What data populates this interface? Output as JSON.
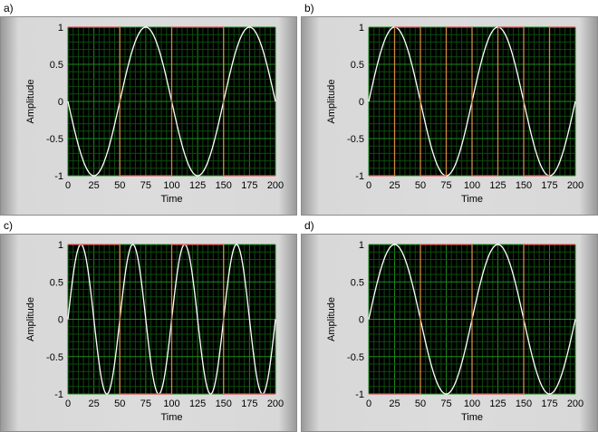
{
  "chart_data": [
    {
      "panel_label": "a)",
      "type": "line",
      "xlabel": "Time",
      "ylabel": "Amplitude",
      "xlim": [
        0,
        200
      ],
      "ylim": [
        -1,
        1
      ],
      "xticks": [
        "0",
        "25",
        "50",
        "75",
        "100",
        "125",
        "150",
        "175",
        "200"
      ],
      "yticks": [
        "1",
        "0.5",
        "0",
        "-0.5",
        "-1"
      ],
      "grid": true,
      "series": [
        {
          "kind": "sine",
          "period": 100,
          "amplitude": 1,
          "phase_sign": -1,
          "color": "#ffffff"
        },
        {
          "kind": "square",
          "start_level": 1,
          "edges": [
            50,
            100,
            150
          ],
          "color": "#e05050"
        }
      ]
    },
    {
      "panel_label": "b)",
      "type": "line",
      "xlabel": "Time",
      "ylabel": "Amplitude",
      "xlim": [
        0,
        200
      ],
      "ylim": [
        -1,
        1
      ],
      "xticks": [
        "0",
        "25",
        "50",
        "75",
        "100",
        "125",
        "150",
        "175",
        "200"
      ],
      "yticks": [
        "1",
        "0.5",
        "0",
        "-0.5",
        "-1"
      ],
      "grid": true,
      "series": [
        {
          "kind": "sine",
          "period": 100,
          "amplitude": 1,
          "phase_sign": 1,
          "color": "#ffffff"
        },
        {
          "kind": "square",
          "start_level": -1,
          "edges": [
            25,
            50,
            75,
            100,
            125,
            150,
            175
          ],
          "color": "#e05050"
        }
      ]
    },
    {
      "panel_label": "c)",
      "type": "line",
      "xlabel": "Time",
      "ylabel": "Amplitude",
      "xlim": [
        0,
        200
      ],
      "ylim": [
        -1,
        1
      ],
      "xticks": [
        "0",
        "25",
        "50",
        "75",
        "100",
        "125",
        "150",
        "175",
        "200"
      ],
      "yticks": [
        "1",
        "0.5",
        "0",
        "-0.5",
        "-1"
      ],
      "grid": true,
      "series": [
        {
          "kind": "sine",
          "period": 50,
          "amplitude": 1,
          "phase_sign": 1,
          "color": "#ffffff"
        },
        {
          "kind": "square",
          "start_level": 1,
          "edges": [
            50,
            100,
            150
          ],
          "color": "#e05050"
        }
      ]
    },
    {
      "panel_label": "d)",
      "type": "line",
      "xlabel": "Time",
      "ylabel": "Amplitude",
      "xlim": [
        0,
        200
      ],
      "ylim": [
        -1,
        1
      ],
      "xticks": [
        "0",
        "25",
        "50",
        "75",
        "100",
        "125",
        "150",
        "175",
        "200"
      ],
      "yticks": [
        "1",
        "0.5",
        "0",
        "-0.5",
        "-1"
      ],
      "grid": true,
      "series": [
        {
          "kind": "sine",
          "period": 100,
          "amplitude": 1,
          "phase_sign": 1,
          "color": "#ffffff"
        },
        {
          "kind": "square",
          "start_level": -1,
          "edges": [
            50,
            100,
            150
          ],
          "color": "#e05050"
        }
      ]
    }
  ],
  "style": {
    "plot_background": "#000000",
    "grid_major": "#1c8a1c",
    "grid_minor": "#0e4a0e",
    "square_edge": "#d08a3a"
  }
}
